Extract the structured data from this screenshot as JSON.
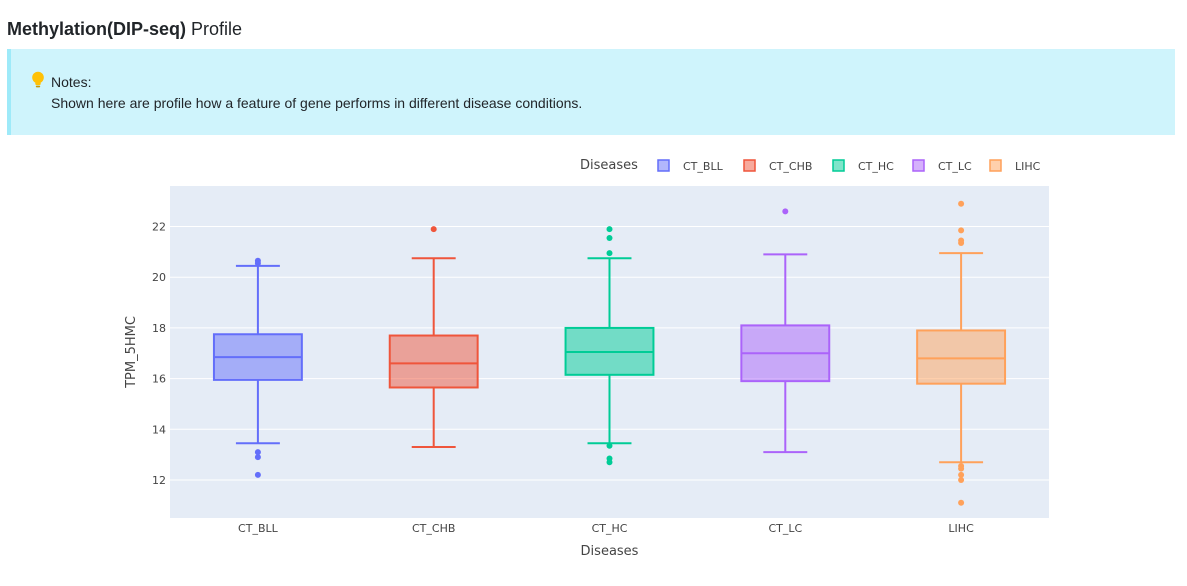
{
  "header": {
    "title_bold": "Methylation(DIP-seq)",
    "title_rest": " Profile"
  },
  "notes": {
    "icon": "lightbulb-icon",
    "label": "Notes:",
    "text": "Shown here are profile how a feature of gene performs in different disease conditions."
  },
  "chart_data": {
    "type": "box",
    "xlabel": "Diseases",
    "ylabel": "TPM_5HMC",
    "ylim": [
      10.5,
      23.6
    ],
    "yticks": [
      12,
      14,
      16,
      18,
      20,
      22
    ],
    "grid": true,
    "legend": {
      "title": "Diseases",
      "placement": "top-right",
      "orientation": "horizontal"
    },
    "categories": [
      "CT_BLL",
      "CT_CHB",
      "CT_HC",
      "CT_LC",
      "LIHC"
    ],
    "series": [
      {
        "name": "CT_BLL",
        "color": "#636efa",
        "q1": 15.95,
        "median": 16.85,
        "q3": 17.75,
        "lower_whisker": 13.45,
        "upper_whisker": 20.45,
        "outliers": [
          20.65,
          20.55,
          13.1,
          12.9,
          12.2
        ]
      },
      {
        "name": "CT_CHB",
        "color": "#ef553b",
        "q1": 15.65,
        "median": 16.6,
        "q3": 17.7,
        "lower_whisker": 13.3,
        "upper_whisker": 20.75,
        "outliers": [
          21.9
        ]
      },
      {
        "name": "CT_HC",
        "color": "#00cc96",
        "q1": 16.15,
        "median": 17.05,
        "q3": 18.0,
        "lower_whisker": 13.45,
        "upper_whisker": 20.75,
        "outliers": [
          21.9,
          21.55,
          20.95,
          13.35,
          12.85,
          12.7
        ]
      },
      {
        "name": "CT_LC",
        "color": "#ab63fa",
        "q1": 15.9,
        "median": 17.0,
        "q3": 18.1,
        "lower_whisker": 13.1,
        "upper_whisker": 20.9,
        "outliers": [
          22.6
        ]
      },
      {
        "name": "LIHC",
        "color": "#ffa15a",
        "q1": 15.8,
        "median": 16.8,
        "q3": 17.9,
        "lower_whisker": 12.7,
        "upper_whisker": 20.95,
        "outliers": [
          22.9,
          21.85,
          21.45,
          21.35,
          12.55,
          12.45,
          12.2,
          12.0,
          11.1
        ]
      }
    ]
  }
}
